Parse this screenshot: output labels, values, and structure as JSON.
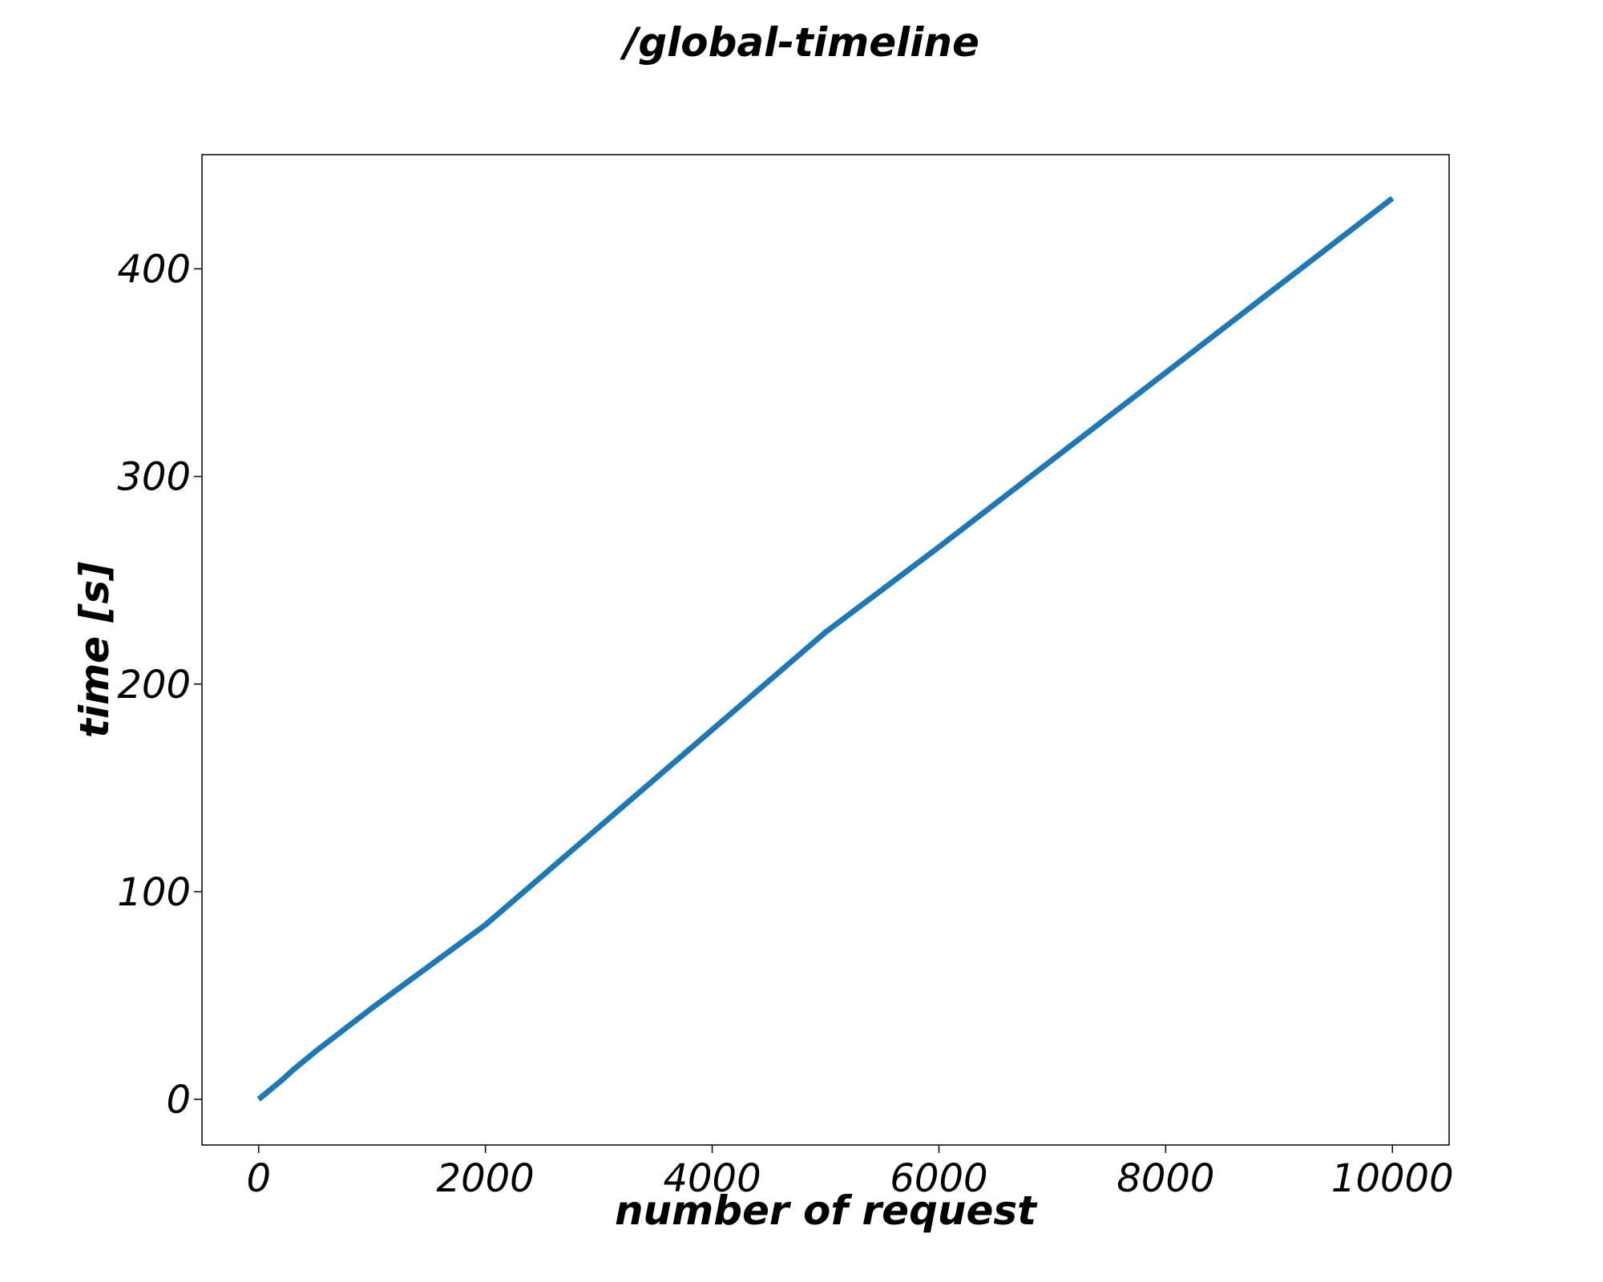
{
  "chart_data": {
    "type": "line",
    "title": "/global-timeline",
    "xlabel": "number of request",
    "ylabel": "time [s]",
    "xlim": [
      -500,
      10500
    ],
    "ylim": [
      -22,
      455
    ],
    "xticks": [
      0,
      2000,
      4000,
      6000,
      8000,
      10000
    ],
    "xtick_labels": [
      "0",
      "2000",
      "4000",
      "6000",
      "8000",
      "10000"
    ],
    "yticks": [
      0,
      100,
      200,
      300,
      400
    ],
    "ytick_labels": [
      "0",
      "100",
      "200",
      "300",
      "400"
    ],
    "grid": false,
    "legend": "none",
    "series": [
      {
        "color": "#1f77b4",
        "x": [
          0,
          100,
          200,
          300,
          400,
          500,
          1000,
          2000,
          3000,
          4000,
          5000,
          6000,
          7000,
          8000,
          9000,
          10000
        ],
        "y": [
          0,
          4.5,
          9,
          14,
          18.5,
          23,
          44,
          84,
          131,
          178,
          225,
          266,
          308,
          350,
          392,
          434
        ]
      }
    ]
  }
}
